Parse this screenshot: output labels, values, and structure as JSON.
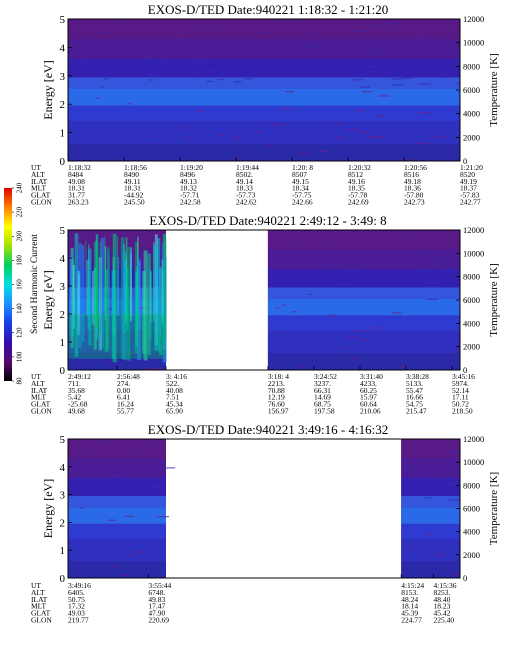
{
  "colors": {
    "background": "#ffffff",
    "text": "#000000",
    "scale_stops": [
      "#000000",
      "#5a0a70",
      "#3010b0",
      "#1840e8",
      "#1e90ff",
      "#00e0e0",
      "#00d060",
      "#a0e000",
      "#ffff00",
      "#ff8000",
      "#e00000"
    ]
  },
  "colorbar": {
    "label": "Second Harmonic Current",
    "ticks": [
      "80",
      "100",
      "120",
      "140",
      "160",
      "180",
      "200",
      "220",
      "240"
    ]
  },
  "chart_data": [
    {
      "type": "heatmap",
      "title": "EXOS-D/TED   Date:940221   1:18:32 - 1:21:20",
      "ylabel": "Energy [eV]",
      "ylabel_right": "Temperature [K]",
      "ylim": [
        0,
        5
      ],
      "yticks": [
        "0",
        "1",
        "2",
        "3",
        "4",
        "5"
      ],
      "ylim_right": [
        0,
        12000
      ],
      "yticks_right": [
        "0",
        "2000",
        "4000",
        "6000",
        "8000",
        "10000",
        "12000"
      ],
      "data_intervals": [
        [
          0,
          1
        ]
      ],
      "row_labels": [
        "UT",
        "ALT",
        "ILAT",
        "MLT",
        "GLAT",
        "GLON"
      ],
      "columns": [
        {
          "UT": "1:18:32",
          "ALT": "8484",
          "ILAT": "49.08",
          "MLT": "18.31",
          "GLAT": "31.77",
          "GLON": "263.23"
        },
        {
          "UT": "1:18:56",
          "ALT": "8490",
          "ILAT": "49.11",
          "MLT": "18.31",
          "GLAT": "-44.92",
          "GLON": "245.50"
        },
        {
          "UT": "1:19:20",
          "ALT": "8496",
          "ILAT": "49.13",
          "MLT": "18.32",
          "GLAT": "-57.71",
          "GLON": "242.58"
        },
        {
          "UT": "1:19:44",
          "ALT": "8502.",
          "ILAT": "49.14",
          "MLT": "18.33",
          "GLAT": "-57.73",
          "GLON": "242.62"
        },
        {
          "UT": "1:20: 8",
          "ALT": "8507",
          "ILAT": "49.15",
          "MLT": "18.34",
          "GLAT": "-57.75",
          "GLON": "242.66"
        },
        {
          "UT": "1:20:32",
          "ALT": "8512",
          "ILAT": "49.16",
          "MLT": "18.35",
          "GLAT": "-57.78",
          "GLON": "242.69"
        },
        {
          "UT": "1:20:56",
          "ALT": "8516",
          "ILAT": "49.18",
          "MLT": "18.36",
          "GLAT": "-57.80",
          "GLON": "242.73"
        },
        {
          "UT": "1:21:20",
          "ALT": "8520",
          "ILAT": "49.19",
          "MLT": "18.37",
          "GLAT": "-57.83",
          "GLON": "242.77"
        }
      ]
    },
    {
      "type": "heatmap",
      "title": "EXOS-D/TED   Date:940221   2:49:12 - 3:49: 8",
      "ylabel": "Energy [eV]",
      "ylabel_right": "Temperature [K]",
      "ylim": [
        0,
        5
      ],
      "yticks": [
        "0",
        "1",
        "2",
        "3",
        "4",
        "5"
      ],
      "ylim_right": [
        0,
        12000
      ],
      "yticks_right": [
        "0",
        "2000",
        "4000",
        "6000",
        "8000",
        "10000",
        "12000"
      ],
      "data_intervals": [
        [
          0,
          0.25
        ],
        [
          0.51,
          1
        ]
      ],
      "row_labels": [
        "UT",
        "ALT",
        "ILAT",
        "MLT",
        "GLAT",
        "GLON"
      ],
      "columns": [
        {
          "UT": "2:49:12",
          "ALT": "711.",
          "ILAT": "35.68",
          "MLT": "5.42",
          "GLAT": "-25.68",
          "GLON": "49.68"
        },
        {
          "UT": "2:56:48",
          "ALT": "274.",
          "ILAT": "0.00",
          "MLT": "6.41",
          "GLAT": "16.24",
          "GLON": "55.77"
        },
        {
          "UT": "3: 4:16",
          "ALT": "522.",
          "ILAT": "40.08",
          "MLT": "7.51",
          "GLAT": "45.34",
          "GLON": "65.90"
        },
        {
          "UT": "3:18: 4",
          "ALT": "2213.",
          "ILAT": "70.88",
          "MLT": "12.19",
          "GLAT": "76.60",
          "GLON": "156.97"
        },
        {
          "UT": "3:24:52",
          "ALT": "3237.",
          "ILAT": "66.31",
          "MLT": "14.69",
          "GLAT": "68.75",
          "GLON": "197.58"
        },
        {
          "UT": "3:31:40",
          "ALT": "4233.",
          "ILAT": "60.25",
          "MLT": "15.97",
          "GLAT": "60.64",
          "GLON": "210.06"
        },
        {
          "UT": "3:38:28",
          "ALT": "5133.",
          "ILAT": "55.47",
          "MLT": "16.66",
          "GLAT": "54.75",
          "GLON": "215.47"
        },
        {
          "UT": "3:45:16",
          "ALT": "5974.",
          "ILAT": "52.14",
          "MLT": "17.11",
          "GLAT": "50.72",
          "GLON": "218.50"
        }
      ]
    },
    {
      "type": "heatmap",
      "title": "EXOS-D/TED   Date:940221   3:49:16 - 4:16:32",
      "ylabel": "Energy [eV]",
      "ylabel_right": "Temperature [K]",
      "ylim": [
        0,
        5
      ],
      "yticks": [
        "0",
        "1",
        "2",
        "3",
        "4",
        "5"
      ],
      "ylim_right": [
        0,
        12000
      ],
      "yticks_right": [
        "0",
        "2000",
        "4000",
        "6000",
        "8000",
        "10000",
        "12000"
      ],
      "data_intervals": [
        [
          0,
          0.25
        ],
        [
          0.85,
          1
        ]
      ],
      "row_labels": [
        "UT",
        "ALT",
        "ILAT",
        "MLT",
        "GLAT",
        "GLON"
      ],
      "columns": [
        {
          "UT": "3:49:16",
          "ALT": "6405.",
          "ILAT": "50.75",
          "MLT": "17.32",
          "GLAT": "49.03",
          "GLON": "219.77"
        },
        {
          "UT": "3:55:44",
          "ALT": "6748.",
          "ILAT": "49.83",
          "MLT": "17.47",
          "GLAT": "47.90",
          "GLON": "220.69"
        },
        {
          "UT": "4:15:24",
          "ALT": "8153.",
          "ILAT": "48.24",
          "MLT": "18.14",
          "GLAT": "45.39",
          "GLON": "224.77"
        },
        {
          "UT": "4:15:36",
          "ALT": "8253.",
          "ILAT": "48.40",
          "MLT": "18.23",
          "GLAT": "45.42",
          "GLON": "225.40"
        }
      ]
    }
  ]
}
